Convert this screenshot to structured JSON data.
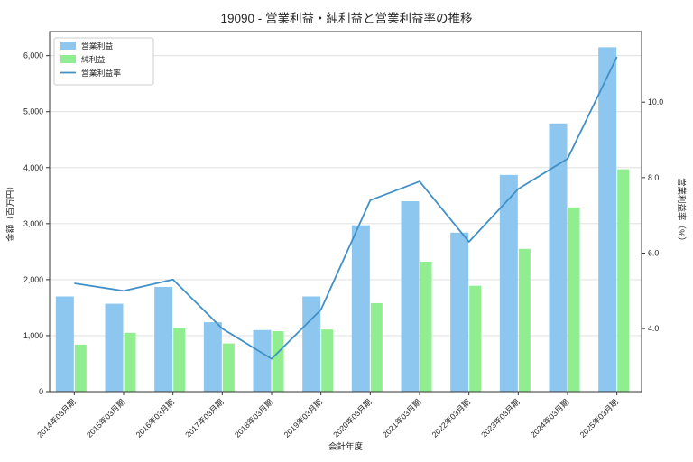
{
  "chart_data": {
    "type": "bar",
    "title": "19090 - 営業利益・純利益と営業利益率の推移",
    "xlabel": "会計年度",
    "ylabel": "金額（百万円）",
    "y2label": "営業利益率（%）",
    "categories": [
      "2014年03月期",
      "2015年03月期",
      "2016年03月期",
      "2017年03月期",
      "2018年03月期",
      "2019年03月期",
      "2020年03月期",
      "2021年03月期",
      "2022年03月期",
      "2023年03月期",
      "2024年03月期",
      "2025年03月期"
    ],
    "series": [
      {
        "name": "営業利益",
        "kind": "bar",
        "axis": "left",
        "color": "#8dc6ee",
        "values": [
          1700,
          1570,
          1870,
          1240,
          1100,
          1700,
          2970,
          3400,
          2840,
          3870,
          4790,
          6150
        ]
      },
      {
        "name": "純利益",
        "kind": "bar",
        "axis": "left",
        "color": "#90ee90",
        "values": [
          840,
          1050,
          1130,
          860,
          1080,
          1110,
          1580,
          2320,
          1890,
          2550,
          3290,
          3970
        ]
      },
      {
        "name": "営業利益率",
        "kind": "line",
        "axis": "right",
        "color": "#4190c7",
        "values": [
          5.2,
          5.0,
          5.3,
          4.0,
          3.2,
          4.5,
          7.4,
          7.9,
          6.3,
          7.7,
          8.5,
          11.2
        ]
      }
    ],
    "left_ticks": {
      "values": [
        0,
        1000,
        2000,
        3000,
        4000,
        5000,
        6000
      ],
      "labels": [
        "0",
        "1,000",
        "2,000",
        "3,000",
        "4,000",
        "5,000",
        "6,000"
      ]
    },
    "right_ticks": {
      "values": [
        4,
        6,
        8,
        10
      ],
      "labels": [
        "4.0",
        "6.0",
        "8.0",
        "10.0"
      ]
    },
    "ylim": [
      0,
      6430
    ],
    "y2lim": [
      2.33,
      11.87
    ],
    "grid": true,
    "legend_position": "upper left",
    "colors": {
      "grid": "#dcdcdc",
      "spine": "#333333",
      "text": "#262626"
    }
  }
}
